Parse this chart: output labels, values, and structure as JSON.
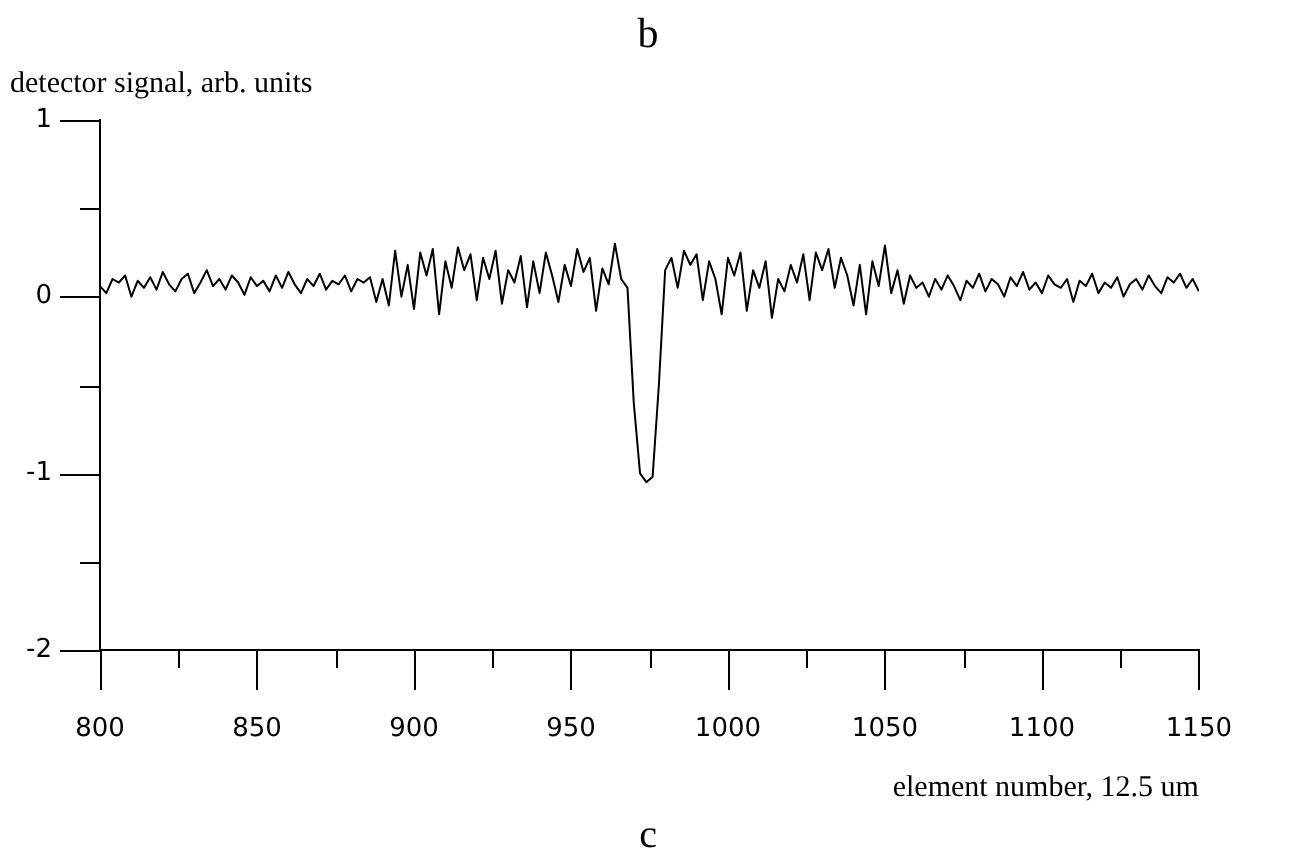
{
  "chart_data": {
    "type": "line",
    "title": "b",
    "ylabel": "detector signal, arb. units",
    "xlabel": "element number, 12.5 um",
    "annotations": [
      "c"
    ],
    "xlim": [
      800,
      1150
    ],
    "ylim": [
      -2,
      1
    ],
    "xticks": [
      800,
      {
        "value": 825,
        "label": null
      },
      850,
      {
        "value": 875,
        "label": null
      },
      900,
      {
        "value": 925,
        "label": null
      },
      950,
      {
        "value": 975,
        "label": null
      },
      1000,
      {
        "value": 1025,
        "label": null
      },
      1050,
      {
        "value": 1075,
        "label": null
      },
      1100,
      {
        "value": 1125,
        "label": null
      },
      1150
    ],
    "yticks": [
      -2,
      {
        "value": -1.5,
        "label": null
      },
      -1,
      {
        "value": -0.5,
        "label": null
      },
      0,
      {
        "value": 0.5,
        "label": null
      },
      1
    ],
    "grid": false,
    "legend": false,
    "marker": "none",
    "line_style": "solid",
    "series": [
      {
        "color": "#000000",
        "x": [
          800,
          802,
          804,
          806,
          808,
          810,
          812,
          814,
          816,
          818,
          820,
          822,
          824,
          826,
          828,
          830,
          832,
          834,
          836,
          838,
          840,
          842,
          844,
          846,
          848,
          850,
          852,
          854,
          856,
          858,
          860,
          862,
          864,
          866,
          868,
          870,
          872,
          874,
          876,
          878,
          880,
          882,
          884,
          886,
          888,
          890,
          892,
          894,
          896,
          898,
          900,
          902,
          904,
          906,
          908,
          910,
          912,
          914,
          916,
          918,
          920,
          922,
          924,
          926,
          928,
          930,
          932,
          934,
          936,
          938,
          940,
          942,
          944,
          946,
          948,
          950,
          952,
          954,
          956,
          958,
          960,
          962,
          964,
          966,
          968,
          970,
          972,
          974,
          976,
          978,
          980,
          982,
          984,
          986,
          988,
          990,
          992,
          994,
          996,
          998,
          1000,
          1002,
          1004,
          1006,
          1008,
          1010,
          1012,
          1014,
          1016,
          1018,
          1020,
          1022,
          1024,
          1026,
          1028,
          1030,
          1032,
          1034,
          1036,
          1038,
          1040,
          1042,
          1044,
          1046,
          1048,
          1050,
          1052,
          1054,
          1056,
          1058,
          1060,
          1062,
          1064,
          1066,
          1068,
          1070,
          1072,
          1074,
          1076,
          1078,
          1080,
          1082,
          1084,
          1086,
          1088,
          1090,
          1092,
          1094,
          1096,
          1098,
          1100,
          1102,
          1104,
          1106,
          1108,
          1110,
          1112,
          1114,
          1116,
          1118,
          1120,
          1122,
          1124,
          1126,
          1128,
          1130,
          1132,
          1134,
          1136,
          1138,
          1140,
          1142,
          1144,
          1146,
          1148,
          1150
        ],
        "values": [
          0.06,
          0.02,
          0.1,
          0.08,
          0.12,
          0.0,
          0.09,
          0.05,
          0.11,
          0.04,
          0.14,
          0.07,
          0.03,
          0.1,
          0.13,
          0.02,
          0.08,
          0.15,
          0.06,
          0.1,
          0.04,
          0.12,
          0.08,
          0.01,
          0.11,
          0.06,
          0.09,
          0.03,
          0.12,
          0.05,
          0.14,
          0.07,
          0.02,
          0.1,
          0.06,
          0.13,
          0.04,
          0.09,
          0.07,
          0.12,
          0.03,
          0.1,
          0.08,
          0.11,
          -0.03,
          0.1,
          -0.05,
          0.26,
          0.0,
          0.18,
          -0.07,
          0.25,
          0.12,
          0.27,
          -0.1,
          0.2,
          0.05,
          0.28,
          0.15,
          0.24,
          -0.02,
          0.22,
          0.1,
          0.26,
          -0.04,
          0.15,
          0.08,
          0.23,
          -0.06,
          0.2,
          0.02,
          0.25,
          0.12,
          -0.03,
          0.18,
          0.06,
          0.27,
          0.14,
          0.22,
          -0.08,
          0.16,
          0.07,
          0.3,
          0.1,
          0.05,
          -0.6,
          -1.0,
          -1.05,
          -1.02,
          -0.5,
          0.15,
          0.22,
          0.05,
          0.26,
          0.18,
          0.24,
          -0.02,
          0.2,
          0.1,
          -0.1,
          0.22,
          0.12,
          0.25,
          -0.08,
          0.15,
          0.05,
          0.2,
          -0.12,
          0.1,
          0.03,
          0.18,
          0.08,
          0.24,
          -0.02,
          0.25,
          0.15,
          0.27,
          0.05,
          0.22,
          0.12,
          -0.05,
          0.18,
          -0.1,
          0.2,
          0.06,
          0.29,
          0.02,
          0.15,
          -0.04,
          0.12,
          0.05,
          0.08,
          0.0,
          0.1,
          0.04,
          0.12,
          0.06,
          -0.02,
          0.09,
          0.05,
          0.13,
          0.03,
          0.1,
          0.07,
          0.0,
          0.11,
          0.06,
          0.14,
          0.04,
          0.08,
          0.02,
          0.12,
          0.07,
          0.05,
          0.1,
          -0.03,
          0.09,
          0.06,
          0.13,
          0.02,
          0.08,
          0.05,
          0.11,
          0.0,
          0.07,
          0.1,
          0.04,
          0.12,
          0.06,
          0.02,
          0.11,
          0.08,
          0.13,
          0.05,
          0.1,
          0.03
        ]
      }
    ]
  }
}
